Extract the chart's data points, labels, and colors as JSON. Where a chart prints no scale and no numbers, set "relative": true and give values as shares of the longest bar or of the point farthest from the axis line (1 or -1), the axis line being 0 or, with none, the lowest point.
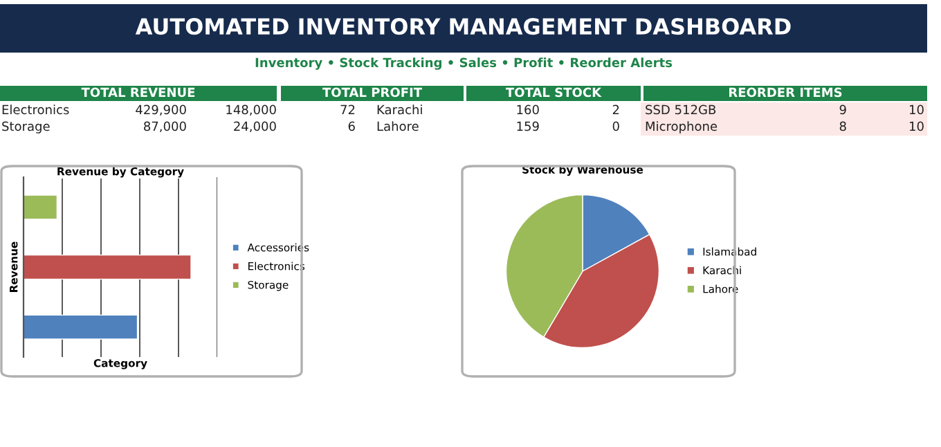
{
  "chart_data": [
    {
      "type": "other",
      "title": "AUTOMATED INVENTORY MANAGEMENT DASHBOARD",
      "subtitle": "Inventory • Stock Tracking • Sales • Profit • Reorder Alerts",
      "annotations": [
        "TOTAL REVENUE",
        "TOTAL PROFIT",
        "TOTAL STOCK",
        "REORDER ITEMS",
        "Electronics",
        "429,900",
        "148,000",
        "72",
        "Karachi",
        "160",
        "2",
        "SSD 512GB",
        "9",
        "10",
        "Storage",
        "87,000",
        "24,000",
        "6",
        "Lahore",
        "159",
        "0",
        "Microphone",
        "8",
        "10"
      ]
    },
    {
      "type": "bar",
      "orientation": "horizontal",
      "relative": true,
      "title": "Revenue by Category",
      "xlabel": "Category",
      "ylabel": "Revenue",
      "categories": [
        null,
        null,
        null
      ],
      "stacked": true,
      "series": [
        {
          "name": "Accessories",
          "color": "#4f81bd",
          "values": [
            null,
            null,
            0.68
          ]
        },
        {
          "name": "Electronics",
          "color": "#c0504d",
          "values": [
            null,
            1.0,
            null
          ]
        },
        {
          "name": "Storage",
          "color": "#9bbb59",
          "values": [
            0.2,
            null,
            null
          ]
        }
      ],
      "grid": "x",
      "legend": "right"
    },
    {
      "type": "pie",
      "title": "Stock by Warehouse",
      "categories": [
        "Islamabad",
        "Karachi",
        "Lahore"
      ],
      "values": [
        17,
        41.5,
        41.5
      ],
      "colors": [
        "#4f81bd",
        "#c0504d",
        "#9bbb59"
      ],
      "legend": "right"
    }
  ]
}
